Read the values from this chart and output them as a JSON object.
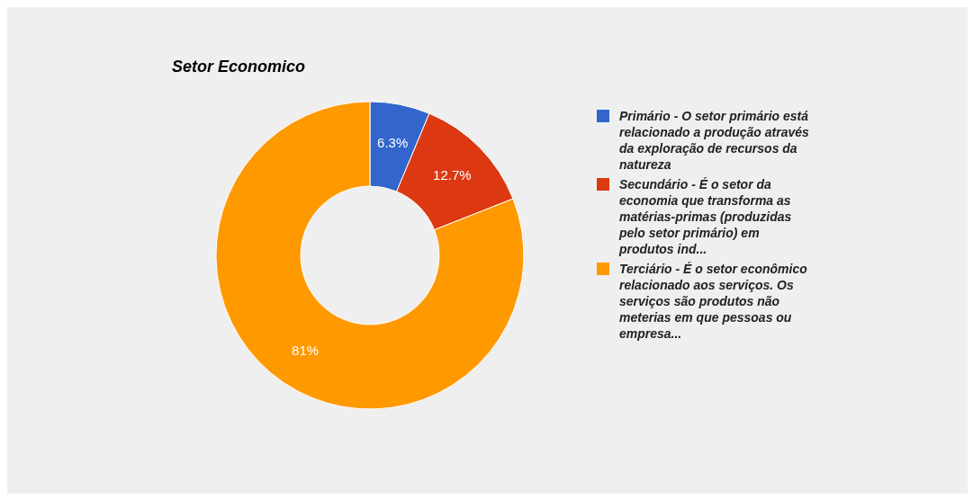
{
  "chart_data": {
    "type": "donut",
    "title": "Setor Economico",
    "categories": [
      "Primário - O setor primário está relacionado a produção através da exploração de recursos da natureza",
      "Secundário - É o setor da economia que transforma as matérias-primas (produzidas pelo setor primário) em produtos ind...",
      "Terciário - É o setor econômico relacionado aos serviços. Os serviços são produtos não meterias em que pessoas ou empresa..."
    ],
    "values": [
      6.3,
      12.7,
      81
    ],
    "colors": [
      "#3366cc",
      "#dc3912",
      "#ff9900"
    ],
    "value_labels": [
      "6.3%",
      "12.7%",
      "81%"
    ],
    "legend": "right"
  }
}
